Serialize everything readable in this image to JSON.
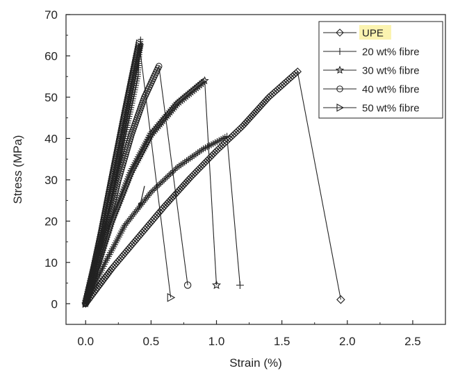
{
  "chart_data": {
    "type": "line",
    "xlabel": "Strain (%)",
    "ylabel": "Stress (MPa)",
    "xlim": [
      -0.15,
      2.75
    ],
    "ylim": [
      -5,
      70
    ],
    "xticks": [
      "0.0",
      "0.5",
      "1.0",
      "1.5",
      "2.0",
      "2.5"
    ],
    "xtick_values": [
      0.0,
      0.5,
      1.0,
      1.5,
      2.0,
      2.5
    ],
    "yticks": [
      "0",
      "10",
      "20",
      "30",
      "40",
      "50",
      "60",
      "70"
    ],
    "ytick_values": [
      0,
      10,
      20,
      30,
      40,
      50,
      60,
      70
    ],
    "grid": false,
    "legend_position": "top-right",
    "highlight_color": "#fbf3b0",
    "series": [
      {
        "name": "UPE",
        "marker": "diamond",
        "highlight": true,
        "curve": [
          [
            0,
            0
          ],
          [
            0.2,
            8.5
          ],
          [
            0.4,
            16
          ],
          [
            0.6,
            23.5
          ],
          [
            0.8,
            30.5
          ],
          [
            1.0,
            37
          ],
          [
            1.2,
            43
          ],
          [
            1.4,
            50
          ],
          [
            1.62,
            56.2
          ]
        ],
        "fracture": [
          [
            1.62,
            56.2
          ],
          [
            1.95,
            1
          ]
        ]
      },
      {
        "name": "20 wt% fibre",
        "marker": "plus",
        "curve": [
          [
            0,
            0
          ],
          [
            0.15,
            10
          ],
          [
            0.3,
            19
          ],
          [
            0.5,
            27
          ],
          [
            0.7,
            33
          ],
          [
            0.9,
            37.5
          ],
          [
            1.08,
            40.5
          ]
        ],
        "fracture": [
          [
            1.08,
            40.5
          ],
          [
            1.18,
            4.5
          ]
        ]
      },
      {
        "name": "30 wt% fibre",
        "marker": "star",
        "curve": [
          [
            0,
            0
          ],
          [
            0.1,
            10
          ],
          [
            0.2,
            20
          ],
          [
            0.35,
            32
          ],
          [
            0.5,
            41
          ],
          [
            0.7,
            48.5
          ],
          [
            0.91,
            54
          ]
        ],
        "fracture": [
          [
            0.91,
            54
          ],
          [
            1.0,
            4.5
          ]
        ]
      },
      {
        "name": "40 wt% fibre",
        "marker": "circle",
        "curve": [
          [
            0,
            0
          ],
          [
            0.07,
            8
          ],
          [
            0.15,
            17
          ],
          [
            0.25,
            30
          ],
          [
            0.35,
            41
          ],
          [
            0.45,
            50
          ],
          [
            0.56,
            57.5
          ]
        ],
        "fracture": [
          [
            0.56,
            57.5
          ],
          [
            0.78,
            4.5
          ]
        ]
      },
      {
        "name": "50 wt% fibre",
        "marker": "triangle-right",
        "curve": [
          [
            0,
            0
          ],
          [
            0.06,
            8
          ],
          [
            0.12,
            17
          ],
          [
            0.2,
            30
          ],
          [
            0.3,
            46
          ],
          [
            0.41,
            63
          ]
        ],
        "fracture": [
          [
            0.41,
            63
          ],
          [
            0.65,
            1.5
          ]
        ]
      }
    ],
    "extra_curves": [
      {
        "marker": "plus",
        "points": [
          [
            0,
            0
          ],
          [
            0.1,
            12
          ],
          [
            0.2,
            25
          ],
          [
            0.3,
            40
          ],
          [
            0.4,
            55
          ],
          [
            0.42,
            64
          ]
        ]
      },
      {
        "marker": "star",
        "points": [
          [
            0,
            0
          ],
          [
            0.1,
            14
          ],
          [
            0.2,
            28
          ],
          [
            0.3,
            44
          ],
          [
            0.4,
            60
          ],
          [
            0.42,
            62.5
          ]
        ]
      }
    ],
    "annotations": [
      {
        "type": "arrow",
        "from": [
          0.45,
          28.5
        ],
        "to": [
          0.41,
          23
        ]
      }
    ]
  }
}
